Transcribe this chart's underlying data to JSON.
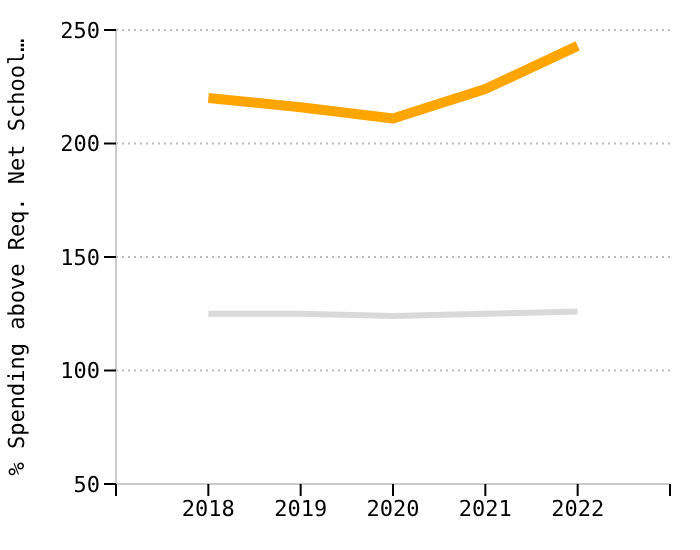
{
  "chart_data": {
    "type": "line",
    "ylabel": "% Spending above Req. Net School…",
    "x": [
      2018,
      2019,
      2020,
      2021,
      2022
    ],
    "series": [
      {
        "color": "#ffa500",
        "values": [
          220,
          216,
          211,
          224,
          243
        ]
      },
      {
        "color": "#d9d9d9",
        "values": [
          125,
          125,
          124,
          125,
          126
        ]
      }
    ],
    "xlim": [
      2017,
      2023
    ],
    "xticks": [
      {
        "value": 2017,
        "label": null
      },
      2018,
      2019,
      2020,
      2021,
      2022,
      {
        "value": 2023,
        "label": null
      }
    ],
    "ylim": [
      50,
      250
    ],
    "yticks": [
      50,
      100,
      150,
      200,
      250
    ],
    "grid": "y",
    "marker": "none",
    "line_style": "solid"
  }
}
